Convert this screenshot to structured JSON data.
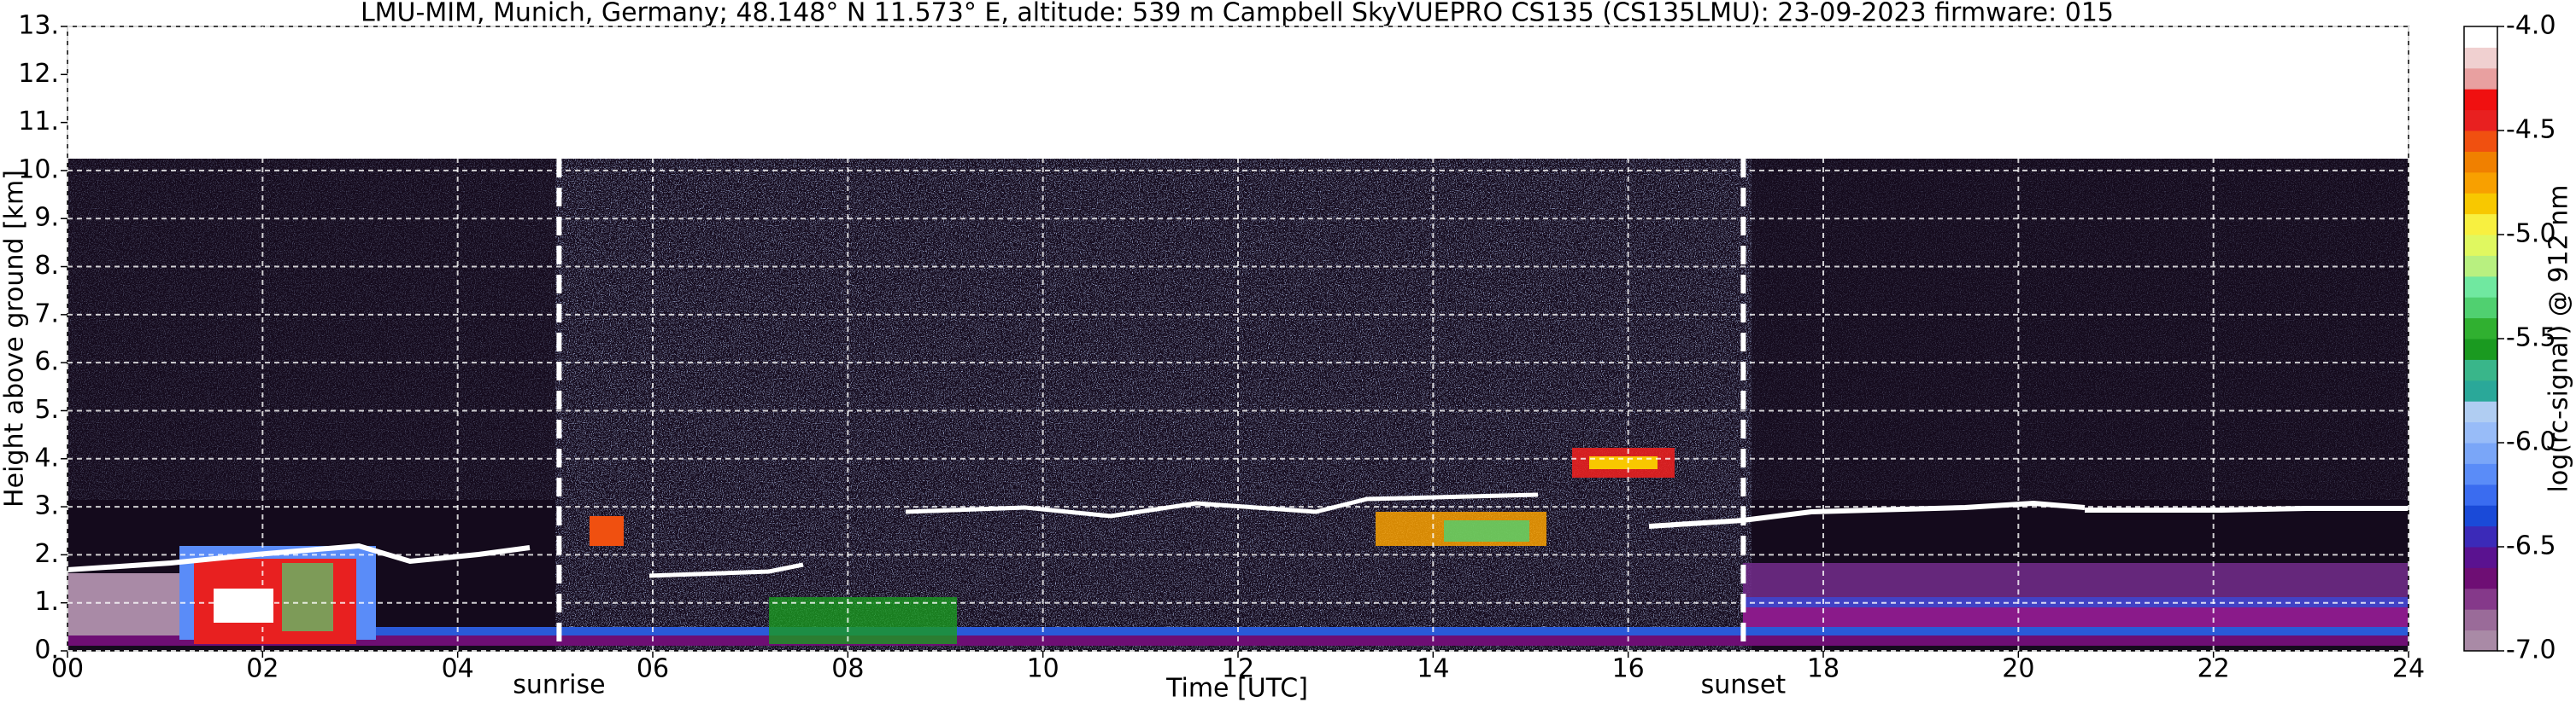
{
  "chart_data": {
    "type": "heatmap",
    "title": "LMU-MIM, Munich, Germany; 48.148° N 11.573° E, altitude: 539 m    Campbell SkyVUEPRO CS135 (CS135LMU): 23-09-2023    firmware: 015",
    "x_label": "Time [UTC]",
    "y_label": "Height above ground [km]",
    "xlim": [
      0,
      24
    ],
    "xticks": [
      {
        "value": 0,
        "label": "00"
      },
      {
        "value": 2,
        "label": "02"
      },
      {
        "value": 4,
        "label": "04"
      },
      {
        "value": 6,
        "label": "06"
      },
      {
        "value": 8,
        "label": "08"
      },
      {
        "value": 10,
        "label": "10"
      },
      {
        "value": 12,
        "label": "12"
      },
      {
        "value": 14,
        "label": "14"
      },
      {
        "value": 16,
        "label": "16"
      },
      {
        "value": 18,
        "label": "18"
      },
      {
        "value": 20,
        "label": "20"
      },
      {
        "value": 22,
        "label": "22"
      },
      {
        "value": 24,
        "label": "24"
      }
    ],
    "ylim": [
      0,
      13
    ],
    "yticks": [
      {
        "value": 0,
        "label": "0."
      },
      {
        "value": 1,
        "label": "1."
      },
      {
        "value": 2,
        "label": "2."
      },
      {
        "value": 3,
        "label": "3."
      },
      {
        "value": 4,
        "label": "4."
      },
      {
        "value": 5,
        "label": "5."
      },
      {
        "value": 6,
        "label": "6."
      },
      {
        "value": 7,
        "label": "7."
      },
      {
        "value": 8,
        "label": "8."
      },
      {
        "value": 9,
        "label": "9."
      },
      {
        "value": 10,
        "label": "10."
      },
      {
        "value": 11,
        "label": "11."
      },
      {
        "value": 12,
        "label": "12."
      },
      {
        "value": 13,
        "label": "13."
      }
    ],
    "grid": true,
    "annotations": [
      {
        "text": "sunrise",
        "x": 5.04
      },
      {
        "text": "sunset",
        "x": 17.18
      }
    ],
    "colorbar": {
      "label": "log(rc-signal) @ 912 nm",
      "lim": [
        -7,
        -4
      ],
      "ticks": [
        {
          "value": -7,
          "label": "-7.0"
        },
        {
          "value": -6.5,
          "label": "-6.5"
        },
        {
          "value": -6,
          "label": "-6.0"
        },
        {
          "value": -5.5,
          "label": "-5.5"
        },
        {
          "value": -5,
          "label": "-5.0"
        },
        {
          "value": -4.5,
          "label": "-4.5"
        },
        {
          "value": -4,
          "label": "-4.0"
        }
      ],
      "colors": [
        "#a98aa6",
        "#9a6b99",
        "#85398a",
        "#6e0e74",
        "#5a1290",
        "#3b2ab8",
        "#1a4ad8",
        "#3a6cf0",
        "#5a8cf8",
        "#7aa6f8",
        "#98bcf8",
        "#b0cdf2",
        "#2aa899",
        "#39b68a",
        "#1a9a20",
        "#30b030",
        "#50d070",
        "#70e8a0",
        "#b8f080",
        "#e0f860",
        "#f8f040",
        "#f8c800",
        "#f8a000",
        "#f08000",
        "#f05010",
        "#e82020",
        "#f01010",
        "#e8a0a0",
        "#f0d0d0",
        "#ffffff"
      ]
    }
  }
}
